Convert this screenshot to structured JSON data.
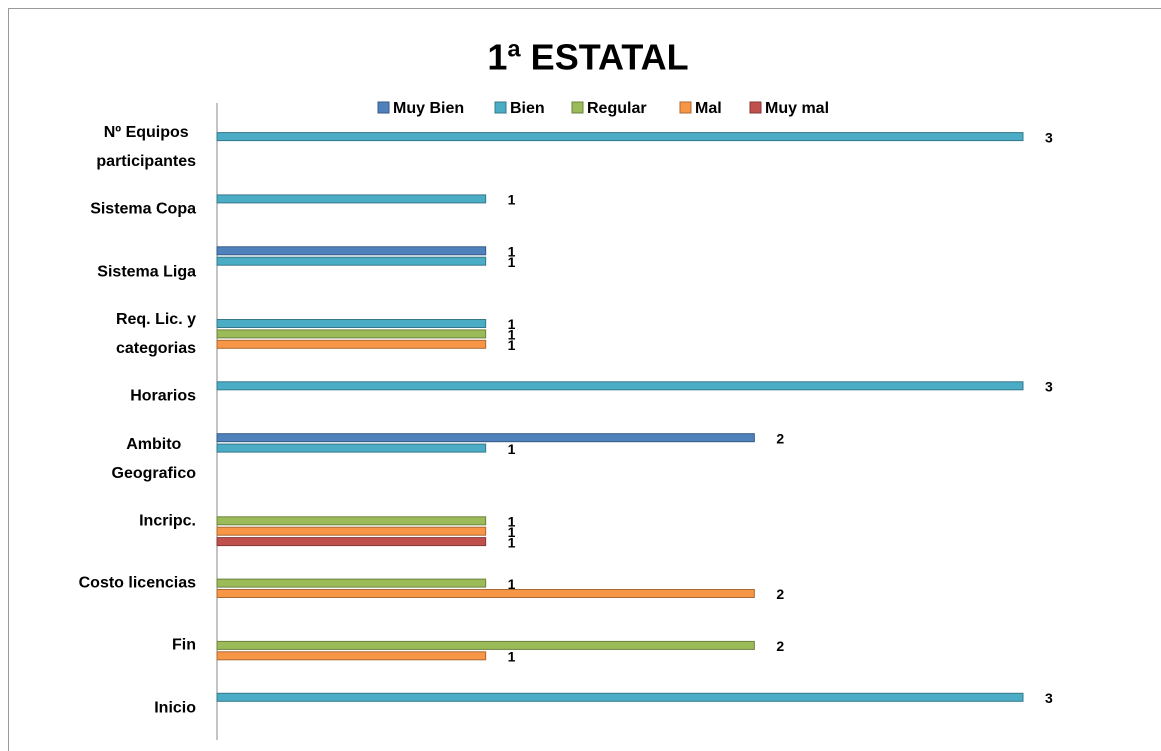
{
  "chart_data": {
    "type": "bar",
    "orientation": "horizontal",
    "title": "1ª ESTATAL",
    "categories": [
      "Nº Equipos\nparticipantes",
      "Sistema Copa",
      "Sistema Liga",
      "Req. Lic. y\ncategorias",
      "Horarios",
      "Ambito\nGeografico",
      "Incripc.",
      "Costo licencias",
      "Fin",
      "Inicio"
    ],
    "series": [
      {
        "name": "Muy Bien",
        "color": "#4f81bd",
        "values": [
          null,
          null,
          1,
          null,
          null,
          2,
          null,
          null,
          null,
          null
        ]
      },
      {
        "name": "Bien",
        "color": "#4bacc6",
        "values": [
          3,
          1,
          1,
          1,
          3,
          1,
          null,
          null,
          null,
          3
        ]
      },
      {
        "name": "Regular",
        "color": "#9bbb59",
        "values": [
          null,
          null,
          null,
          1,
          null,
          null,
          1,
          1,
          2,
          null
        ]
      },
      {
        "name": "Mal",
        "color": "#f79646",
        "values": [
          null,
          null,
          null,
          1,
          null,
          null,
          1,
          2,
          1,
          null
        ]
      },
      {
        "name": "Muy mal",
        "color": "#c0504d",
        "values": [
          null,
          null,
          null,
          null,
          null,
          null,
          1,
          null,
          null,
          null
        ]
      }
    ],
    "xlim": [
      0,
      3
    ],
    "legend": "top"
  }
}
